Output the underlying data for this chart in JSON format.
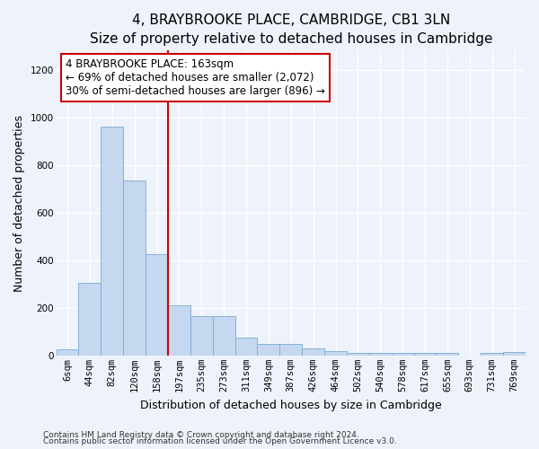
{
  "title": "4, BRAYBROOKE PLACE, CAMBRIDGE, CB1 3LN",
  "subtitle": "Size of property relative to detached houses in Cambridge",
  "xlabel": "Distribution of detached houses by size in Cambridge",
  "ylabel": "Number of detached properties",
  "bar_color": "#c5d8f0",
  "bar_edge_color": "#7aaad4",
  "categories": [
    "6sqm",
    "44sqm",
    "82sqm",
    "120sqm",
    "158sqm",
    "197sqm",
    "235sqm",
    "273sqm",
    "311sqm",
    "349sqm",
    "387sqm",
    "426sqm",
    "464sqm",
    "502sqm",
    "540sqm",
    "578sqm",
    "617sqm",
    "655sqm",
    "693sqm",
    "731sqm",
    "769sqm"
  ],
  "values": [
    25,
    305,
    960,
    735,
    425,
    210,
    165,
    165,
    75,
    48,
    48,
    30,
    18,
    10,
    10,
    10,
    10,
    10,
    0,
    10,
    15
  ],
  "ylim": [
    0,
    1280
  ],
  "yticks": [
    0,
    200,
    400,
    600,
    800,
    1000,
    1200
  ],
  "vline_color": "#cc0000",
  "annotation_text": "4 BRAYBROOKE PLACE: 163sqm\n← 69% of detached houses are smaller (2,072)\n30% of semi-detached houses are larger (896) →",
  "annotation_box_color": "#ffffff",
  "annotation_box_edgecolor": "#cc0000",
  "footnote1": "Contains HM Land Registry data © Crown copyright and database right 2024.",
  "footnote2": "Contains public sector information licensed under the Open Government Licence v3.0.",
  "background_color": "#eef2fa",
  "grid_color": "#ffffff",
  "title_fontsize": 11,
  "axis_label_fontsize": 9,
  "tick_fontsize": 7.5,
  "annotation_fontsize": 8.5,
  "footnote_fontsize": 6.5
}
